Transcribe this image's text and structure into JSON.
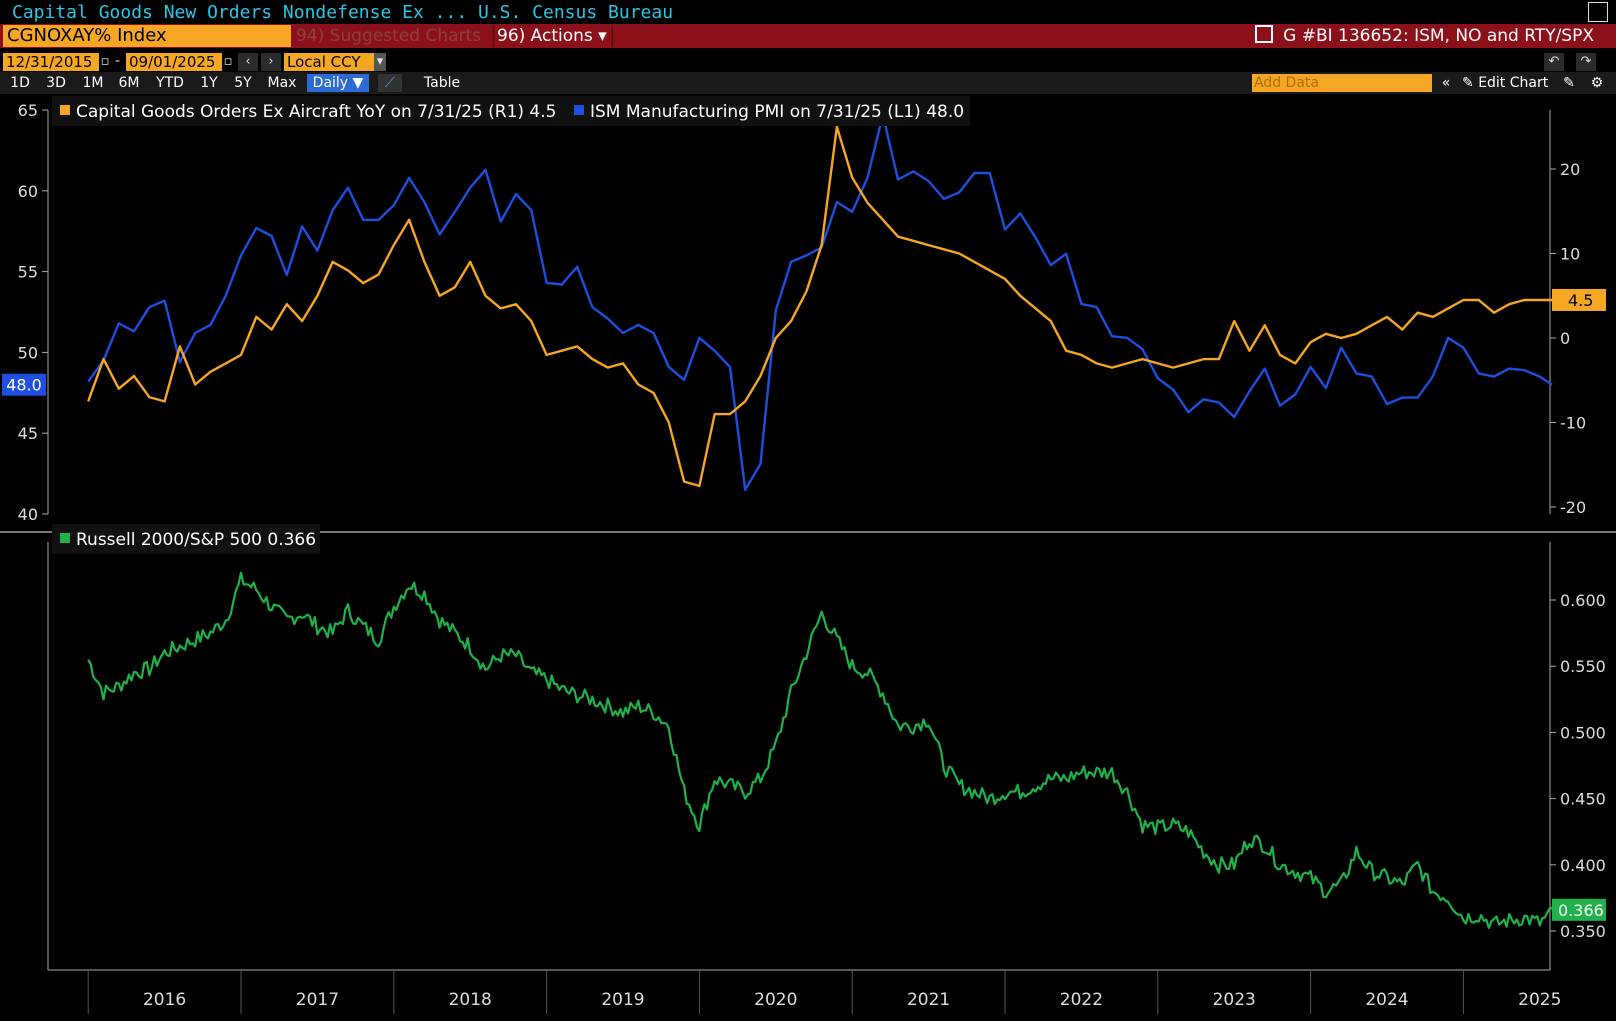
{
  "header": {
    "title": "Capital Goods New Orders Nondefense Ex ...  U.S. Census Bureau",
    "ticker": "CGNOXAY% Index",
    "suggested_charts": "94) Suggested Charts ▾",
    "actions": "96) Actions ▾",
    "document": "G #BI 136652: ISM, NO and RTY/SPX"
  },
  "controls": {
    "start_date": "12/31/2015",
    "end_date": "09/01/2025",
    "currency": "Local CCY",
    "periods": [
      "1D",
      "3D",
      "1M",
      "6M",
      "YTD",
      "1Y",
      "5Y",
      "Max"
    ],
    "frequency": "Daily ▼",
    "table": "Table",
    "add_data_placeholder": "Add Data",
    "edit_chart": "Edit Chart"
  },
  "colors": {
    "capital_goods": "#f5a623",
    "ism": "#1f4fe0",
    "russell": "#20b24a",
    "header_bar": "#8b1019"
  },
  "chart_data": [
    {
      "type": "line",
      "legend": [
        "Capital Goods Orders Ex Aircraft YoY on 7/31/25 (R1) 4.5",
        "ISM Manufacturing PMI on 7/31/25 (L1) 48.0"
      ],
      "left_axis": {
        "ticks": [
          "65",
          "60",
          "55",
          "50",
          "45",
          "40"
        ],
        "ylim": [
          40,
          65
        ],
        "last_label": "48.0"
      },
      "right_axis": {
        "ticks": [
          "20",
          "10",
          "0",
          "-10",
          "-20"
        ],
        "ylim": [
          -20,
          25
        ],
        "last_label": "4.5"
      },
      "series": [
        {
          "name": "ISM Manufacturing PMI",
          "axis": "left",
          "x": [
            2016.0,
            2016.1,
            2016.2,
            2016.3,
            2016.4,
            2016.5,
            2016.6,
            2016.7,
            2016.8,
            2016.9,
            2017.0,
            2017.1,
            2017.2,
            2017.3,
            2017.4,
            2017.5,
            2017.6,
            2017.7,
            2017.8,
            2017.9,
            2018.0,
            2018.1,
            2018.2,
            2018.3,
            2018.4,
            2018.5,
            2018.6,
            2018.7,
            2018.8,
            2018.9,
            2019.0,
            2019.1,
            2019.2,
            2019.3,
            2019.4,
            2019.5,
            2019.6,
            2019.7,
            2019.8,
            2019.9,
            2020.0,
            2020.1,
            2020.2,
            2020.3,
            2020.4,
            2020.5,
            2020.6,
            2020.7,
            2020.8,
            2020.9,
            2021.0,
            2021.1,
            2021.2,
            2021.3,
            2021.4,
            2021.5,
            2021.6,
            2021.7,
            2021.8,
            2021.9,
            2022.0,
            2022.1,
            2022.2,
            2022.3,
            2022.4,
            2022.5,
            2022.6,
            2022.7,
            2022.8,
            2022.9,
            2023.0,
            2023.1,
            2023.2,
            2023.3,
            2023.4,
            2023.5,
            2023.6,
            2023.7,
            2023.8,
            2023.9,
            2024.0,
            2024.1,
            2024.2,
            2024.3,
            2024.4,
            2024.5,
            2024.6,
            2024.7,
            2024.8,
            2024.9,
            2025.0,
            2025.1,
            2025.2,
            2025.3,
            2025.4,
            2025.5,
            2025.58
          ],
          "values": [
            48.2,
            49.5,
            51.8,
            51.3,
            52.8,
            53.2,
            49.4,
            51.2,
            51.7,
            53.5,
            56.0,
            57.7,
            57.2,
            54.8,
            57.8,
            56.3,
            58.8,
            60.2,
            58.2,
            58.2,
            59.1,
            60.8,
            59.3,
            57.3,
            58.7,
            60.2,
            61.3,
            58.1,
            59.8,
            58.8,
            54.3,
            54.2,
            55.3,
            52.8,
            52.1,
            51.2,
            51.7,
            51.2,
            49.1,
            48.3,
            50.9,
            50.1,
            49.1,
            41.5,
            43.1,
            52.6,
            55.6,
            56.0,
            56.5,
            59.3,
            58.7,
            60.8,
            64.7,
            60.7,
            61.2,
            60.6,
            59.5,
            59.9,
            61.1,
            61.1,
            57.6,
            58.6,
            57.1,
            55.4,
            56.1,
            53.0,
            52.8,
            51.0,
            50.9,
            50.2,
            48.4,
            47.7,
            46.3,
            47.1,
            46.9,
            46.0,
            47.6,
            49.0,
            46.7,
            47.4,
            49.1,
            47.8,
            50.3,
            48.7,
            48.5,
            46.8,
            47.2,
            47.2,
            48.5,
            50.9,
            50.3,
            48.7,
            48.5,
            49.0,
            48.9,
            48.5,
            48.0
          ]
        },
        {
          "name": "Capital Goods Orders Ex Aircraft YoY",
          "axis": "right",
          "x": [
            2016.0,
            2016.1,
            2016.2,
            2016.3,
            2016.4,
            2016.5,
            2016.6,
            2016.7,
            2016.8,
            2016.9,
            2017.0,
            2017.1,
            2017.2,
            2017.3,
            2017.4,
            2017.5,
            2017.6,
            2017.7,
            2017.8,
            2017.9,
            2018.0,
            2018.1,
            2018.2,
            2018.3,
            2018.4,
            2018.5,
            2018.6,
            2018.7,
            2018.8,
            2018.9,
            2019.0,
            2019.1,
            2019.2,
            2019.3,
            2019.4,
            2019.5,
            2019.6,
            2019.7,
            2019.8,
            2019.9,
            2020.0,
            2020.1,
            2020.2,
            2020.3,
            2020.4,
            2020.5,
            2020.6,
            2020.7,
            2020.8,
            2020.9,
            2021.0,
            2021.1,
            2021.2,
            2021.3,
            2021.4,
            2021.5,
            2021.6,
            2021.7,
            2021.8,
            2021.9,
            2022.0,
            2022.1,
            2022.2,
            2022.3,
            2022.4,
            2022.5,
            2022.6,
            2022.7,
            2022.8,
            2022.9,
            2023.0,
            2023.1,
            2023.2,
            2023.3,
            2023.4,
            2023.5,
            2023.6,
            2023.7,
            2023.8,
            2023.9,
            2024.0,
            2024.1,
            2024.2,
            2024.3,
            2024.4,
            2024.5,
            2024.6,
            2024.7,
            2024.8,
            2024.9,
            2025.0,
            2025.1,
            2025.2,
            2025.3,
            2025.4,
            2025.5,
            2025.58
          ],
          "values": [
            -7.5,
            -2.5,
            -6.0,
            -4.5,
            -7.0,
            -7.5,
            -1.0,
            -5.5,
            -4.0,
            -3.0,
            -2.0,
            2.5,
            1.0,
            4.0,
            2.0,
            5.0,
            9.0,
            8.0,
            6.5,
            7.5,
            11.0,
            14.0,
            9.0,
            5.0,
            6.0,
            9.0,
            5.0,
            3.5,
            4.0,
            2.0,
            -2.0,
            -1.5,
            -1.0,
            -2.5,
            -3.5,
            -3.0,
            -5.5,
            -6.5,
            -10.0,
            -17.0,
            -17.5,
            -9.0,
            -9.0,
            -7.5,
            -4.5,
            0.0,
            2.0,
            5.5,
            11.0,
            25.0,
            19.0,
            16.0,
            14.0,
            12.0,
            11.5,
            11.0,
            10.5,
            10.0,
            9.0,
            8.0,
            7.0,
            5.0,
            3.5,
            2.0,
            -1.5,
            -2.0,
            -3.0,
            -3.5,
            -3.0,
            -2.5,
            -3.0,
            -3.5,
            -3.0,
            -2.5,
            -2.5,
            2.0,
            -1.5,
            1.5,
            -2.0,
            -3.0,
            -0.5,
            0.5,
            0.0,
            0.5,
            1.5,
            2.5,
            1.0,
            3.0,
            2.5,
            3.5,
            4.5,
            4.5,
            3.0,
            4.0,
            4.5,
            4.5,
            4.5
          ]
        }
      ]
    },
    {
      "type": "line",
      "legend": [
        "Russell 2000/S&P 500 0.366"
      ],
      "right_axis": {
        "ticks": [
          "0.600",
          "0.550",
          "0.500",
          "0.450",
          "0.400",
          "0.350"
        ],
        "ylim": [
          0.32,
          0.63
        ],
        "last_label": "0.366"
      },
      "x_axis": {
        "ticks": [
          "2016",
          "2017",
          "2018",
          "2019",
          "2020",
          "2021",
          "2022",
          "2023",
          "2024",
          "2025"
        ]
      },
      "series": [
        {
          "name": "Russell 2000/S&P 500",
          "axis": "right",
          "x": [
            2016.0,
            2016.1,
            2016.2,
            2016.3,
            2016.4,
            2016.5,
            2016.6,
            2016.7,
            2016.8,
            2016.9,
            2017.0,
            2017.1,
            2017.2,
            2017.3,
            2017.4,
            2017.5,
            2017.6,
            2017.7,
            2017.8,
            2017.9,
            2018.0,
            2018.1,
            2018.2,
            2018.3,
            2018.4,
            2018.5,
            2018.6,
            2018.7,
            2018.8,
            2018.9,
            2019.0,
            2019.1,
            2019.2,
            2019.3,
            2019.4,
            2019.5,
            2019.6,
            2019.7,
            2019.8,
            2019.9,
            2020.0,
            2020.1,
            2020.2,
            2020.3,
            2020.4,
            2020.5,
            2020.6,
            2020.7,
            2020.8,
            2020.9,
            2021.0,
            2021.1,
            2021.2,
            2021.3,
            2021.4,
            2021.5,
            2021.6,
            2021.7,
            2021.8,
            2021.9,
            2022.0,
            2022.1,
            2022.2,
            2022.3,
            2022.4,
            2022.5,
            2022.6,
            2022.7,
            2022.8,
            2022.9,
            2023.0,
            2023.1,
            2023.2,
            2023.3,
            2023.4,
            2023.5,
            2023.6,
            2023.7,
            2023.8,
            2023.9,
            2024.0,
            2024.1,
            2024.2,
            2024.3,
            2024.4,
            2024.5,
            2024.6,
            2024.7,
            2024.8,
            2024.9,
            2025.0,
            2025.1,
            2025.2,
            2025.3,
            2025.4,
            2025.5,
            2025.6
          ],
          "values": [
            0.555,
            0.53,
            0.535,
            0.545,
            0.548,
            0.56,
            0.565,
            0.57,
            0.575,
            0.585,
            0.615,
            0.608,
            0.595,
            0.585,
            0.59,
            0.58,
            0.575,
            0.592,
            0.58,
            0.57,
            0.595,
            0.612,
            0.605,
            0.585,
            0.575,
            0.565,
            0.548,
            0.558,
            0.558,
            0.545,
            0.54,
            0.532,
            0.528,
            0.525,
            0.52,
            0.515,
            0.52,
            0.515,
            0.505,
            0.455,
            0.43,
            0.465,
            0.46,
            0.455,
            0.465,
            0.49,
            0.53,
            0.56,
            0.59,
            0.57,
            0.55,
            0.545,
            0.53,
            0.505,
            0.505,
            0.51,
            0.475,
            0.46,
            0.455,
            0.45,
            0.455,
            0.455,
            0.46,
            0.465,
            0.465,
            0.47,
            0.47,
            0.47,
            0.455,
            0.43,
            0.428,
            0.43,
            0.425,
            0.41,
            0.4,
            0.4,
            0.42,
            0.415,
            0.4,
            0.395,
            0.39,
            0.38,
            0.385,
            0.41,
            0.395,
            0.39,
            0.385,
            0.4,
            0.38,
            0.375,
            0.36,
            0.362,
            0.355,
            0.358,
            0.36,
            0.356,
            0.366
          ]
        }
      ]
    }
  ]
}
